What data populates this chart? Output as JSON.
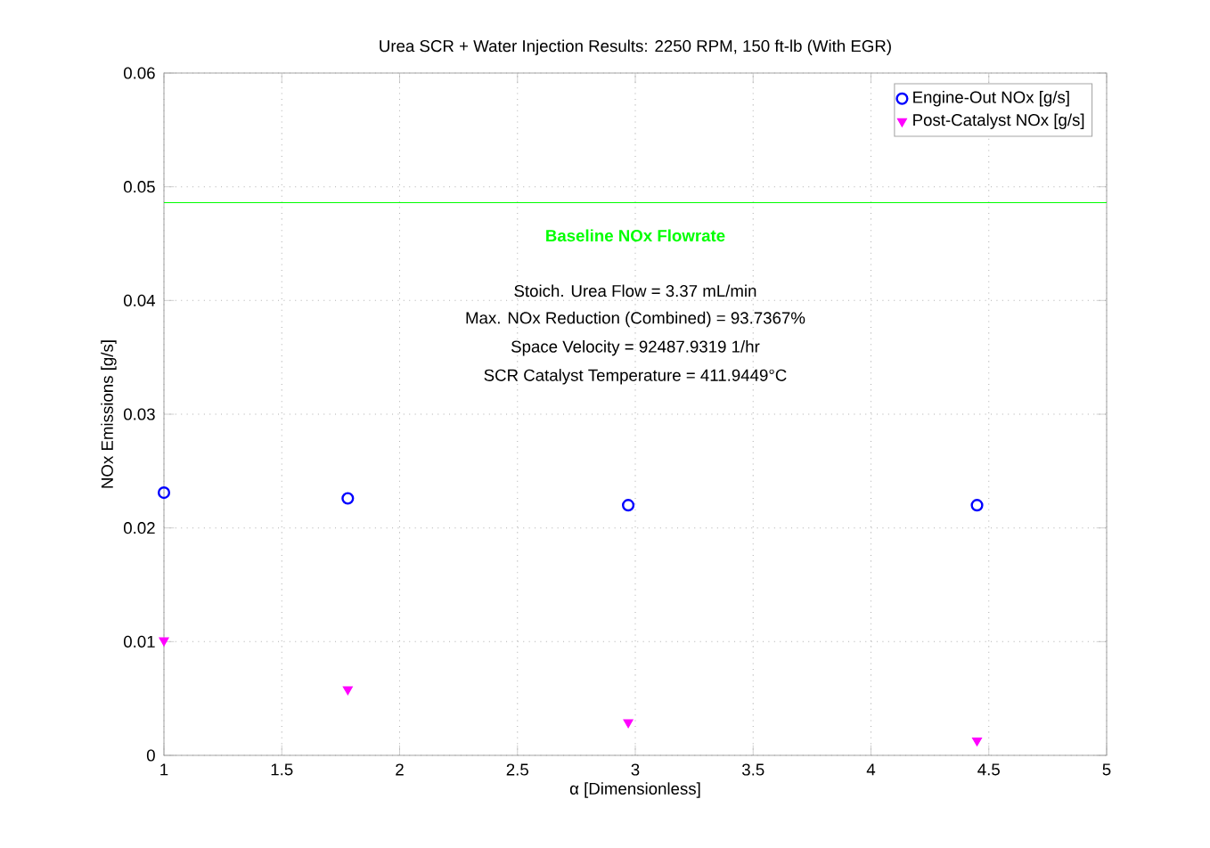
{
  "chart_data": {
    "type": "scatter",
    "title": "Urea SCR + Water Injection Results: 2250 RPM, 150 ft-lb (With EGR)",
    "xlabel": "α [Dimensionless]",
    "ylabel": "NOx Emissions [g/s]",
    "x": [
      1,
      1.78,
      2.97,
      4.45
    ],
    "series": [
      {
        "name": "Engine-Out NOx [g/s]",
        "color": "#0000ff",
        "marker": "circle",
        "values": [
          0.0231,
          0.0226,
          0.022,
          0.022
        ]
      },
      {
        "name": "Post-Catalyst NOx [g/s]",
        "color": "#ff00ff",
        "marker": "triangle",
        "values": [
          0.0101,
          0.0058,
          0.0029,
          0.0013
        ]
      }
    ],
    "xlim": [
      1,
      5
    ],
    "ylim": [
      0,
      0.06
    ],
    "xticks": [
      1,
      1.5,
      2,
      2.5,
      3,
      3.5,
      4,
      4.5,
      5
    ],
    "yticks": [
      0,
      0.01,
      0.02,
      0.03,
      0.04,
      0.05,
      0.06
    ],
    "ref_lines": [
      {
        "axis": "y",
        "value": 0.0486,
        "label": "Baseline NOx Flowrate",
        "color": "#00ff00"
      }
    ],
    "annotations": [
      "Stoich. Urea Flow = 3.37 mL/min",
      "Max. NOx Reduction (Combined) = 93.7367%",
      "Space Velocity = 92487.9319 1/hr",
      "SCR Catalyst Temperature = 411.9449°C"
    ],
    "grid": true,
    "legend": "top right"
  }
}
